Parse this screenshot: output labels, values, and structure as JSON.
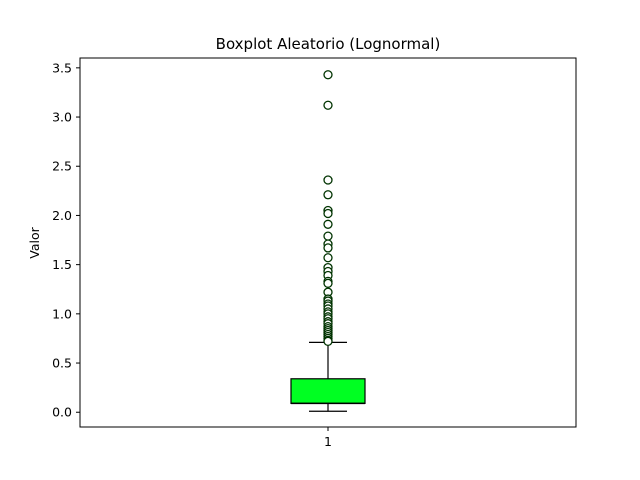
{
  "chart_data": {
    "type": "boxplot",
    "title": "Boxplot Aleatorio (Lognormal)",
    "xlabel": "",
    "ylabel": "Valor",
    "categories": [
      "1"
    ],
    "ylim": [
      -0.15,
      3.6
    ],
    "yticks": [
      0.0,
      0.5,
      1.0,
      1.5,
      2.0,
      2.5,
      3.0,
      3.5
    ],
    "ytick_labels": [
      "0.0",
      "0.5",
      "1.0",
      "1.5",
      "2.0",
      "2.5",
      "3.0",
      "3.5"
    ],
    "grid": false,
    "box": {
      "whisker_low": 0.01,
      "q1": 0.09,
      "median": 0.09,
      "q3": 0.34,
      "whisker_high": 0.71,
      "fill_color": "#00ff22",
      "edge_color": "#000000"
    },
    "outliers": [
      3.43,
      3.12,
      2.36,
      2.21,
      2.05,
      2.02,
      1.91,
      1.79,
      1.71,
      1.67,
      1.57,
      1.47,
      1.43,
      1.39,
      1.33,
      1.31,
      1.22,
      1.15,
      1.13,
      1.1,
      1.08,
      1.05,
      1.02,
      1.0,
      0.97,
      0.95,
      0.92,
      0.9,
      0.87,
      0.85,
      0.83,
      0.81,
      0.79,
      0.77,
      0.75,
      0.73,
      0.72
    ],
    "outlier_face_color": "#ffffff",
    "outlier_edge_color": "#003300"
  }
}
